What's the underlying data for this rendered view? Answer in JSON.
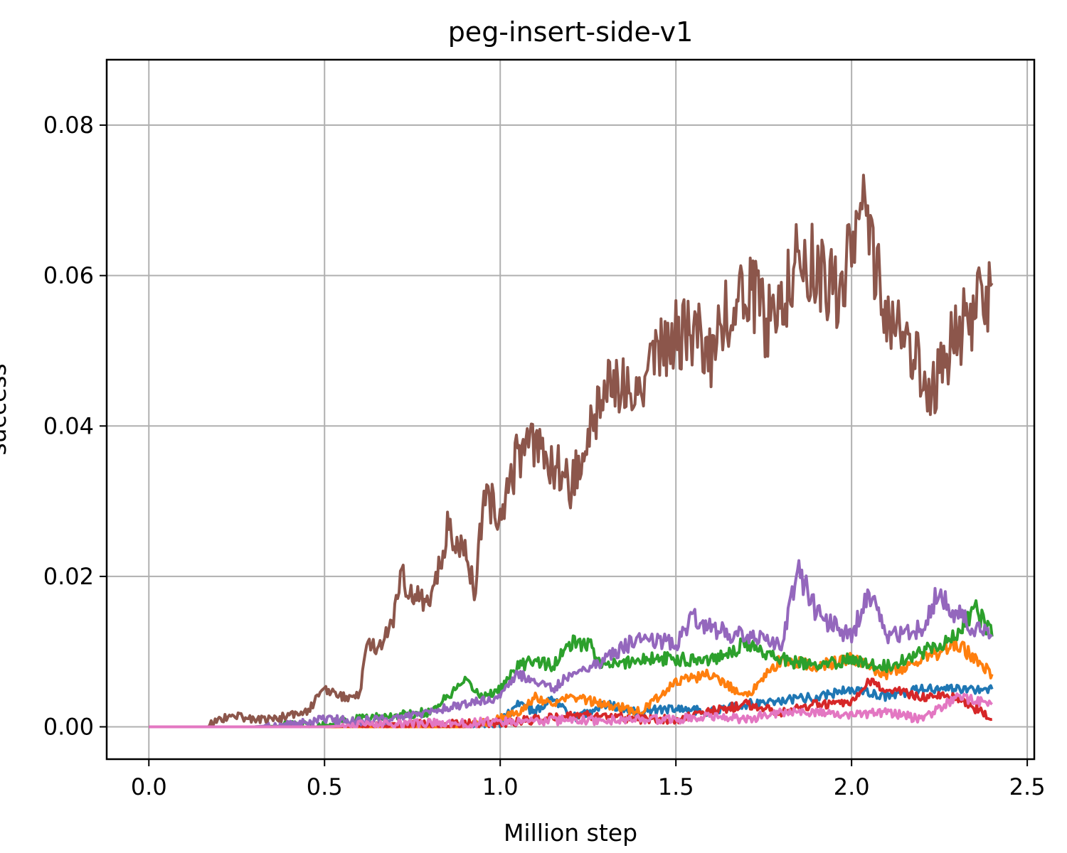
{
  "chart_data": {
    "type": "line",
    "title": "peg-insert-side-v1",
    "xlabel": "Million step",
    "ylabel": "success",
    "xlim": [
      -0.12,
      2.52
    ],
    "ylim": [
      -0.0043,
      0.0887
    ],
    "xticks": [
      0.0,
      0.5,
      1.0,
      1.5,
      2.0,
      2.5
    ],
    "xtick_labels": [
      "0.0",
      "0.5",
      "1.0",
      "1.5",
      "2.0",
      "2.5"
    ],
    "yticks": [
      0.0,
      0.02,
      0.04,
      0.06,
      0.08
    ],
    "ytick_labels": [
      "0.00",
      "0.02",
      "0.04",
      "0.06",
      "0.08"
    ],
    "grid": true,
    "legend": "none",
    "series": [
      {
        "color": "#1f77b4",
        "x": [
          0.0,
          0.3,
          0.5,
          0.7,
          0.9,
          1.0,
          1.05,
          1.1,
          1.15,
          1.2,
          1.3,
          1.4,
          1.5,
          1.6,
          1.7,
          1.8,
          1.9,
          2.0,
          2.1,
          2.2,
          2.3,
          2.4
        ],
        "y": [
          0,
          0,
          0,
          0,
          0,
          0.0005,
          0.003,
          0.002,
          0.004,
          0.001,
          0.003,
          0.002,
          0.0025,
          0.002,
          0.003,
          0.0035,
          0.004,
          0.005,
          0.004,
          0.005,
          0.005,
          0.005
        ]
      },
      {
        "color": "#ff7f0e",
        "x": [
          0.0,
          0.3,
          0.5,
          0.7,
          0.9,
          1.0,
          1.05,
          1.1,
          1.15,
          1.2,
          1.3,
          1.4,
          1.5,
          1.6,
          1.7,
          1.8,
          1.9,
          2.0,
          2.1,
          2.2,
          2.3,
          2.4
        ],
        "y": [
          0,
          0,
          0,
          0,
          0,
          0.001,
          0.002,
          0.004,
          0.003,
          0.004,
          0.003,
          0.002,
          0.006,
          0.007,
          0.004,
          0.009,
          0.008,
          0.009,
          0.007,
          0.009,
          0.011,
          0.007
        ]
      },
      {
        "color": "#2ca02c",
        "x": [
          0.0,
          0.3,
          0.5,
          0.6,
          0.7,
          0.8,
          0.9,
          0.95,
          1.0,
          1.05,
          1.1,
          1.15,
          1.2,
          1.25,
          1.3,
          1.4,
          1.5,
          1.6,
          1.7,
          1.8,
          1.9,
          2.0,
          2.1,
          2.2,
          2.3,
          2.35,
          2.4
        ],
        "y": [
          0,
          0,
          0.0003,
          0.001,
          0.0015,
          0.002,
          0.006,
          0.004,
          0.005,
          0.008,
          0.009,
          0.008,
          0.011,
          0.011,
          0.008,
          0.009,
          0.009,
          0.009,
          0.011,
          0.009,
          0.008,
          0.009,
          0.008,
          0.01,
          0.012,
          0.016,
          0.012
        ]
      },
      {
        "color": "#d62728",
        "x": [
          0.0,
          0.3,
          0.5,
          0.7,
          0.9,
          1.0,
          1.1,
          1.2,
          1.3,
          1.4,
          1.5,
          1.6,
          1.7,
          1.8,
          1.9,
          2.0,
          2.05,
          2.1,
          2.2,
          2.3,
          2.4
        ],
        "y": [
          0,
          0,
          0,
          0.0002,
          0.0004,
          0.0005,
          0.001,
          0.0015,
          0.0015,
          0.001,
          0.001,
          0.002,
          0.003,
          0.002,
          0.003,
          0.003,
          0.006,
          0.005,
          0.004,
          0.004,
          0.001
        ]
      },
      {
        "color": "#9467bd",
        "x": [
          0.0,
          0.3,
          0.45,
          0.5,
          0.6,
          0.7,
          0.8,
          0.9,
          1.0,
          1.05,
          1.1,
          1.15,
          1.2,
          1.3,
          1.4,
          1.5,
          1.55,
          1.6,
          1.7,
          1.8,
          1.85,
          1.9,
          2.0,
          2.05,
          2.1,
          2.2,
          2.25,
          2.3,
          2.35,
          2.4
        ],
        "y": [
          0,
          0,
          0.0005,
          0.001,
          0.0008,
          0.001,
          0.002,
          0.003,
          0.004,
          0.007,
          0.006,
          0.005,
          0.007,
          0.009,
          0.012,
          0.011,
          0.015,
          0.013,
          0.012,
          0.011,
          0.021,
          0.015,
          0.012,
          0.018,
          0.012,
          0.013,
          0.018,
          0.015,
          0.013,
          0.012
        ]
      },
      {
        "color": "#8c564b",
        "x": [
          0.0,
          0.17,
          0.2,
          0.25,
          0.3,
          0.35,
          0.4,
          0.45,
          0.5,
          0.55,
          0.6,
          0.62,
          0.65,
          0.7,
          0.72,
          0.75,
          0.8,
          0.85,
          0.9,
          0.93,
          0.95,
          1.0,
          1.05,
          1.1,
          1.15,
          1.2,
          1.25,
          1.3,
          1.35,
          1.4,
          1.45,
          1.5,
          1.55,
          1.6,
          1.65,
          1.7,
          1.75,
          1.8,
          1.85,
          1.9,
          1.95,
          2.0,
          2.03,
          2.05,
          2.1,
          2.15,
          2.2,
          2.22,
          2.25,
          2.3,
          2.35,
          2.4
        ],
        "y": [
          0,
          0,
          0.001,
          0.0015,
          0.001,
          0.001,
          0.0015,
          0.002,
          0.005,
          0.004,
          0.004,
          0.012,
          0.01,
          0.015,
          0.02,
          0.018,
          0.016,
          0.026,
          0.024,
          0.018,
          0.03,
          0.029,
          0.036,
          0.037,
          0.035,
          0.032,
          0.038,
          0.044,
          0.047,
          0.046,
          0.049,
          0.052,
          0.052,
          0.05,
          0.055,
          0.059,
          0.054,
          0.057,
          0.064,
          0.061,
          0.058,
          0.062,
          0.072,
          0.066,
          0.052,
          0.052,
          0.047,
          0.043,
          0.047,
          0.053,
          0.055,
          0.059
        ]
      },
      {
        "color": "#e377c2",
        "x": [
          0.0,
          0.3,
          0.5,
          0.6,
          0.7,
          0.8,
          0.9,
          1.0,
          1.1,
          1.2,
          1.3,
          1.4,
          1.5,
          1.6,
          1.7,
          1.8,
          1.9,
          2.0,
          2.1,
          2.2,
          2.3,
          2.4
        ],
        "y": [
          0,
          0,
          0,
          0.0002,
          0.0003,
          0.0005,
          0.0004,
          0.0008,
          0.0006,
          0.001,
          0.0008,
          0.001,
          0.001,
          0.0015,
          0.001,
          0.002,
          0.002,
          0.0015,
          0.002,
          0.001,
          0.004,
          0.003
        ]
      }
    ]
  }
}
